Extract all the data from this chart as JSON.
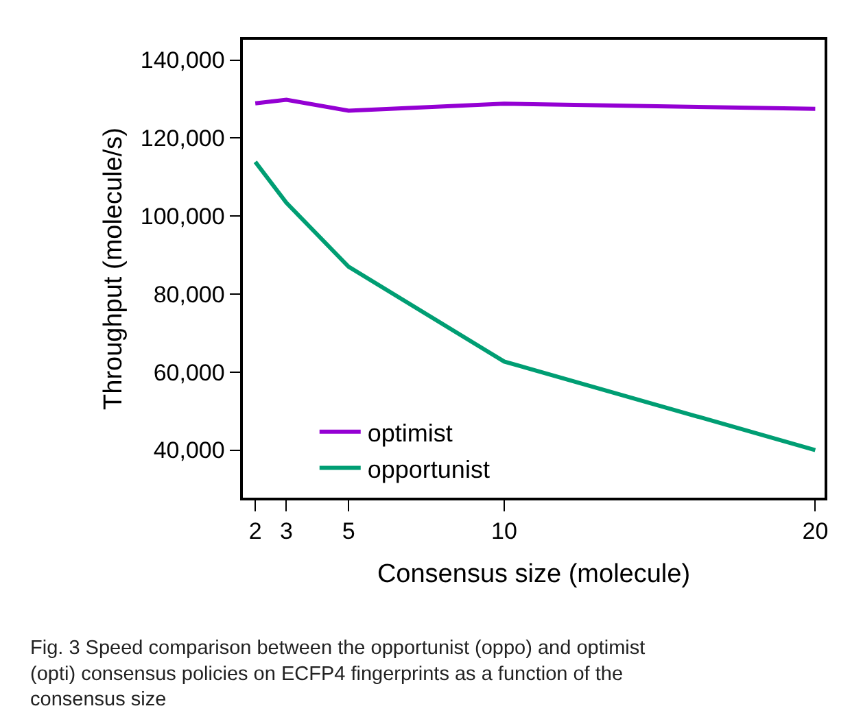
{
  "chart_data": {
    "type": "line",
    "xlabel": "Consensus size (molecule)",
    "ylabel": "Throughput (molecule/s)",
    "x": [
      2,
      3,
      5,
      10,
      20
    ],
    "series": [
      {
        "name": "optimist",
        "color": "#9400d3",
        "values": [
          128900,
          129800,
          127000,
          128800,
          127500
        ]
      },
      {
        "name": "opportunist",
        "color": "#009e73",
        "values": [
          113900,
          103400,
          87000,
          62700,
          40000
        ]
      }
    ],
    "xlim": [
      1.6,
      20.3
    ],
    "xticks": [
      2,
      3,
      5,
      10,
      20
    ],
    "ylim": [
      27800,
      145200
    ],
    "yticks": [
      {
        "value": 40000,
        "label": "40,000"
      },
      {
        "value": 60000,
        "label": "60,000"
      },
      {
        "value": 80000,
        "label": "80,000"
      },
      {
        "value": 100000,
        "label": "100,000"
      },
      {
        "value": 120000,
        "label": "120,000"
      },
      {
        "value": 140000,
        "label": "140,000"
      }
    ],
    "legend": "bottom left",
    "marker": "none",
    "line_style": "solid",
    "annotations": [
      "Fig. 3 Speed comparison between the opportunist (oppo) and optimist (opti) consensus policies on ECFP4 fingerprints as a function of the consensus size"
    ]
  }
}
